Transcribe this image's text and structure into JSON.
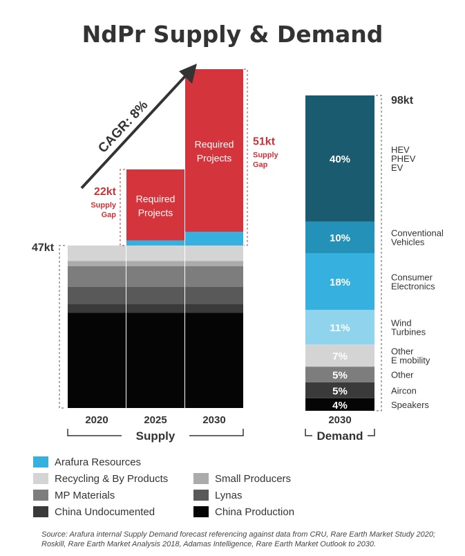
{
  "title": "NdPr Supply & Demand",
  "source_note": "Source: Arafura internal Supply Demand forecast referencing against data from CRU, Rare Earth Market Study 2020; Roskill, Rare Earth Market Analysis 2018, Adamas Intelligence, Rare Earth Market Outlook to 2030.",
  "colors": {
    "arafura": "#36b0de",
    "recycling": "#d4d4d4",
    "small_producers": "#ababab",
    "mp_materials": "#7d7d7d",
    "lynas": "#595959",
    "china_undocumented": "#3a3a3a",
    "china_production": "#050505",
    "required": "#d4353c",
    "gap_text": "#c9343a"
  },
  "legend": [
    {
      "label": "Arafura Resources",
      "key": "arafura"
    },
    {
      "label": "Recycling & By Products",
      "key": "recycling"
    },
    {
      "label": "Small Producers",
      "key": "small_producers"
    },
    {
      "label": "MP Materials",
      "key": "mp_materials"
    },
    {
      "label": "Lynas",
      "key": "lynas"
    },
    {
      "label": "China Undocumented",
      "key": "china_undocumented"
    },
    {
      "label": "China Production",
      "key": "china_production"
    }
  ],
  "chart_data": [
    {
      "type": "bar",
      "stacked": true,
      "group_label": "Supply",
      "categories": [
        "2020",
        "2025",
        "2030"
      ],
      "unit": "kt",
      "total_label": "47kt",
      "cagr_label": "CAGR: 8%",
      "series": [
        {
          "name": "China Production",
          "key": "china_production",
          "values": [
            27.5,
            27.5,
            27.5
          ]
        },
        {
          "name": "China Undocumented",
          "key": "china_undocumented",
          "values": [
            2.5,
            2.5,
            2.5
          ]
        },
        {
          "name": "Lynas",
          "key": "lynas",
          "values": [
            5.0,
            5.0,
            5.0
          ]
        },
        {
          "name": "MP Materials",
          "key": "mp_materials",
          "values": [
            6.0,
            6.0,
            6.0
          ]
        },
        {
          "name": "Small Producers",
          "key": "small_producers",
          "values": [
            1.5,
            1.5,
            1.5
          ]
        },
        {
          "name": "Recycling & By Products",
          "key": "recycling",
          "values": [
            4.5,
            4.5,
            4.5
          ]
        },
        {
          "name": "Arafura Resources",
          "key": "arafura",
          "values": [
            0,
            1.5,
            4.0
          ]
        },
        {
          "name": "Required Projects",
          "key": "required",
          "values": [
            0,
            20.5,
            47.0
          ]
        }
      ],
      "gap_annotations": [
        {
          "category": "2025",
          "value_label": "22kt",
          "lines": [
            "Supply",
            "Gap"
          ],
          "bar_lines": [
            "Required",
            "Projects"
          ]
        },
        {
          "category": "2030",
          "value_label": "51kt",
          "lines": [
            "Supply",
            "Gap"
          ],
          "bar_lines": [
            "Required",
            "Projects"
          ]
        }
      ]
    },
    {
      "type": "bar",
      "stacked": true,
      "group_label": "Demand",
      "categories": [
        "2030"
      ],
      "unit": "kt",
      "total_label": "98kt",
      "segments": [
        {
          "name": "Speakers",
          "percent_label": "4%",
          "value": 4,
          "color": "#050505",
          "text_color": "#ffffff",
          "label_lines": [
            "Speakers"
          ]
        },
        {
          "name": "Aircon",
          "percent_label": "5%",
          "value": 5,
          "color": "#3a3a3a",
          "text_color": "#ffffff",
          "label_lines": [
            "Aircon"
          ]
        },
        {
          "name": "Other",
          "percent_label": "5%",
          "value": 5,
          "color": "#7d7d7d",
          "text_color": "#ffffff",
          "label_lines": [
            "Other"
          ]
        },
        {
          "name": "Other E mobility",
          "percent_label": "7%",
          "value": 7,
          "color": "#d4d4d4",
          "text_color": "#ffffff",
          "label_lines": [
            "Other",
            "E mobility"
          ]
        },
        {
          "name": "Wind Turbines",
          "percent_label": "11%",
          "value": 11,
          "color": "#8fd3ec",
          "text_color": "#ffffff",
          "label_lines": [
            "Wind",
            "Turbines"
          ]
        },
        {
          "name": "Consumer Electronics",
          "percent_label": "18%",
          "value": 18,
          "color": "#36b0de",
          "text_color": "#ffffff",
          "label_lines": [
            "Consumer",
            "Electronics"
          ]
        },
        {
          "name": "Conventional Vehicles",
          "percent_label": "10%",
          "value": 10,
          "color": "#2391b8",
          "text_color": "#ffffff",
          "label_lines": [
            "Conventional",
            "Vehicles"
          ]
        },
        {
          "name": "HEV PHEV EV",
          "percent_label": "40%",
          "value": 40,
          "color": "#1b5b70",
          "text_color": "#ffffff",
          "label_lines": [
            "HEV",
            "PHEV",
            "EV"
          ]
        }
      ]
    }
  ]
}
